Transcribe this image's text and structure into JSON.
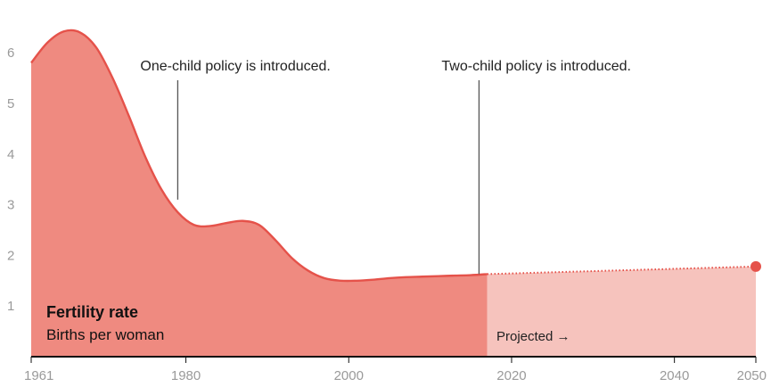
{
  "chart_data": {
    "type": "area",
    "title": "Fertility rate",
    "subtitle": "Births per woman",
    "x": [
      1961,
      1963,
      1965,
      1967,
      1969,
      1971,
      1973,
      1975,
      1977,
      1979,
      1981,
      1983,
      1985,
      1987,
      1989,
      1991,
      1993,
      1995,
      1997,
      1999,
      2001,
      2003,
      2005,
      2007,
      2009,
      2011,
      2013,
      2015,
      2017
    ],
    "series": [
      {
        "values": [
          5.8,
          6.2,
          6.42,
          6.4,
          6.1,
          5.5,
          4.75,
          3.95,
          3.3,
          2.85,
          2.6,
          2.58,
          2.64,
          2.68,
          2.6,
          2.3,
          1.95,
          1.7,
          1.55,
          1.5,
          1.5,
          1.52,
          1.55,
          1.57,
          1.58,
          1.59,
          1.6,
          1.61,
          1.63
        ],
        "color": "#e5524a",
        "fill": "#ef8a80"
      }
    ],
    "projection": {
      "label": "Projected →",
      "x": [
        2017,
        2050
      ],
      "values": [
        1.63,
        1.78
      ],
      "fill": "#f6c3bd"
    },
    "annotations": [
      {
        "text": "One-child policy is introduced.",
        "x": 1979,
        "y": 3.1
      },
      {
        "text": "Two-child policy is introduced.",
        "x": 2016,
        "y": 1.63
      }
    ],
    "xticks": [
      "1961",
      "1980",
      "2000",
      "2020",
      "2040",
      "2050"
    ],
    "xtick_values": [
      1961,
      1980,
      2000,
      2020,
      2040,
      2050
    ],
    "yticks": [
      "1",
      "2",
      "3",
      "4",
      "5",
      "6"
    ],
    "ytick_values": [
      1,
      2,
      3,
      4,
      5,
      6
    ],
    "xlim": [
      1961,
      2050
    ],
    "ylim": [
      0,
      6.9
    ],
    "grid": false
  }
}
